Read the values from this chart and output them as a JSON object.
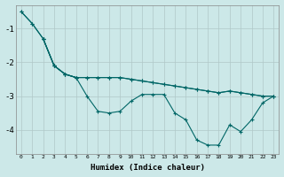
{
  "xlabel": "Humidex (Indice chaleur)",
  "background_color": "#cce8e8",
  "grid_color": "#c8d8d8",
  "line_color": "#006666",
  "xlim": [
    -0.5,
    23.5
  ],
  "ylim": [
    -4.7,
    -0.3
  ],
  "yticks": [
    -4,
    -3,
    -2,
    -1
  ],
  "xticks": [
    0,
    1,
    2,
    3,
    4,
    5,
    6,
    7,
    8,
    9,
    10,
    11,
    12,
    13,
    14,
    15,
    16,
    17,
    18,
    19,
    20,
    21,
    22,
    23
  ],
  "series": [
    {
      "x": [
        0,
        1,
        2,
        3,
        4,
        5,
        6,
        7,
        8,
        9,
        10,
        11,
        12,
        13,
        14,
        15,
        16,
        17,
        18,
        19,
        20,
        21,
        22,
        23
      ],
      "y": [
        -0.5,
        -0.85,
        -1.3,
        -2.1,
        -2.35,
        -2.45,
        -3.0,
        -3.45,
        -3.5,
        -3.45,
        -3.15,
        -2.95,
        -2.95,
        -2.95,
        -3.5,
        -3.7,
        -4.3,
        -4.45,
        -4.45,
        -3.85,
        -4.05,
        -3.7,
        -3.2,
        -3.0
      ]
    },
    {
      "x": [
        0,
        1,
        2,
        3,
        4,
        5,
        6,
        7,
        8,
        9,
        10,
        11,
        12,
        13,
        14,
        15,
        16,
        17,
        18,
        19,
        20,
        21,
        22,
        23
      ],
      "y": [
        -0.5,
        -0.85,
        -1.3,
        -2.1,
        -2.35,
        -2.45,
        -2.45,
        -2.45,
        -2.45,
        -2.45,
        -2.5,
        -2.55,
        -2.6,
        -2.65,
        -2.7,
        -2.75,
        -2.8,
        -2.85,
        -2.9,
        -2.85,
        -2.9,
        -2.95,
        -3.0,
        -3.0
      ]
    },
    {
      "x": [
        2,
        3,
        4,
        5,
        6,
        7,
        8,
        9,
        10,
        11,
        12,
        13,
        14,
        15,
        16,
        17,
        18,
        19,
        20,
        21,
        22,
        23
      ],
      "y": [
        -1.3,
        -2.1,
        -2.35,
        -2.45,
        -2.45,
        -2.45,
        -2.45,
        -2.45,
        -2.5,
        -2.55,
        -2.6,
        -2.65,
        -2.7,
        -2.75,
        -2.8,
        -2.85,
        -2.9,
        -2.85,
        -2.9,
        -2.95,
        -3.0,
        -3.0
      ]
    },
    {
      "x": [
        2,
        3,
        4,
        5
      ],
      "y": [
        -1.3,
        -2.1,
        -2.35,
        -2.45
      ]
    }
  ]
}
